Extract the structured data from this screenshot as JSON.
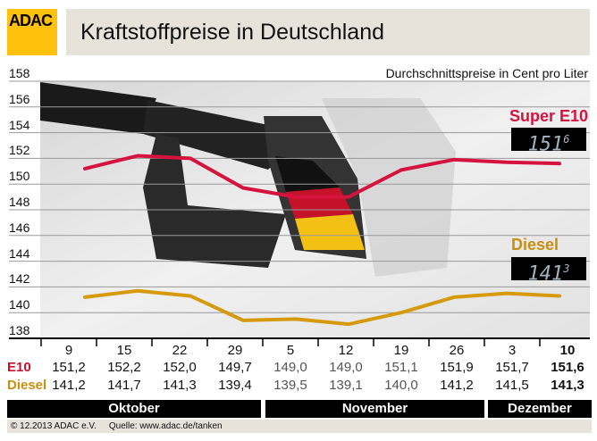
{
  "header": {
    "logo": "ADAC",
    "title": "Kraftstoffpreise in Deutschland",
    "subtitle": "Durchschnittspreise in Cent pro Liter"
  },
  "legend": {
    "e10_label": "Super E10",
    "e10_display": "151",
    "e10_display_sup": "6",
    "diesel_label": "Diesel",
    "diesel_display": "141",
    "diesel_display_sup": "3"
  },
  "table": {
    "e10_row_label": "E10",
    "diesel_row_label": "Diesel"
  },
  "months": [
    "Oktober",
    "November",
    "Dezember"
  ],
  "footer": {
    "copyright": "© 12.2013  ADAC e.V.",
    "source": "Quelle: www.adac.de/tanken"
  },
  "chart_data": {
    "type": "line",
    "title": "Kraftstoffpreise in Deutschland",
    "ylabel": "Durchschnittspreise in Cent pro Liter",
    "ylim": [
      138,
      158
    ],
    "yticks": [
      "158",
      "156",
      "154",
      "152",
      "150",
      "148",
      "146",
      "144",
      "142",
      "140",
      "138"
    ],
    "categories": [
      "9",
      "15",
      "22",
      "29",
      "5",
      "12",
      "19",
      "26",
      "3",
      "10"
    ],
    "series": [
      {
        "name": "Super E10",
        "color": "#d6123f",
        "values": [
          "151,2",
          "152,2",
          "152,0",
          "149,7",
          "149,0",
          "149,0",
          "151,1",
          "151,9",
          "151,7",
          "151,6"
        ]
      },
      {
        "name": "Diesel",
        "color": "#d69a0f",
        "values": [
          "141,2",
          "141,7",
          "141,3",
          "139,4",
          "139,5",
          "139,1",
          "140,0",
          "141,2",
          "141,5",
          "141,3"
        ]
      }
    ],
    "grid": true
  }
}
